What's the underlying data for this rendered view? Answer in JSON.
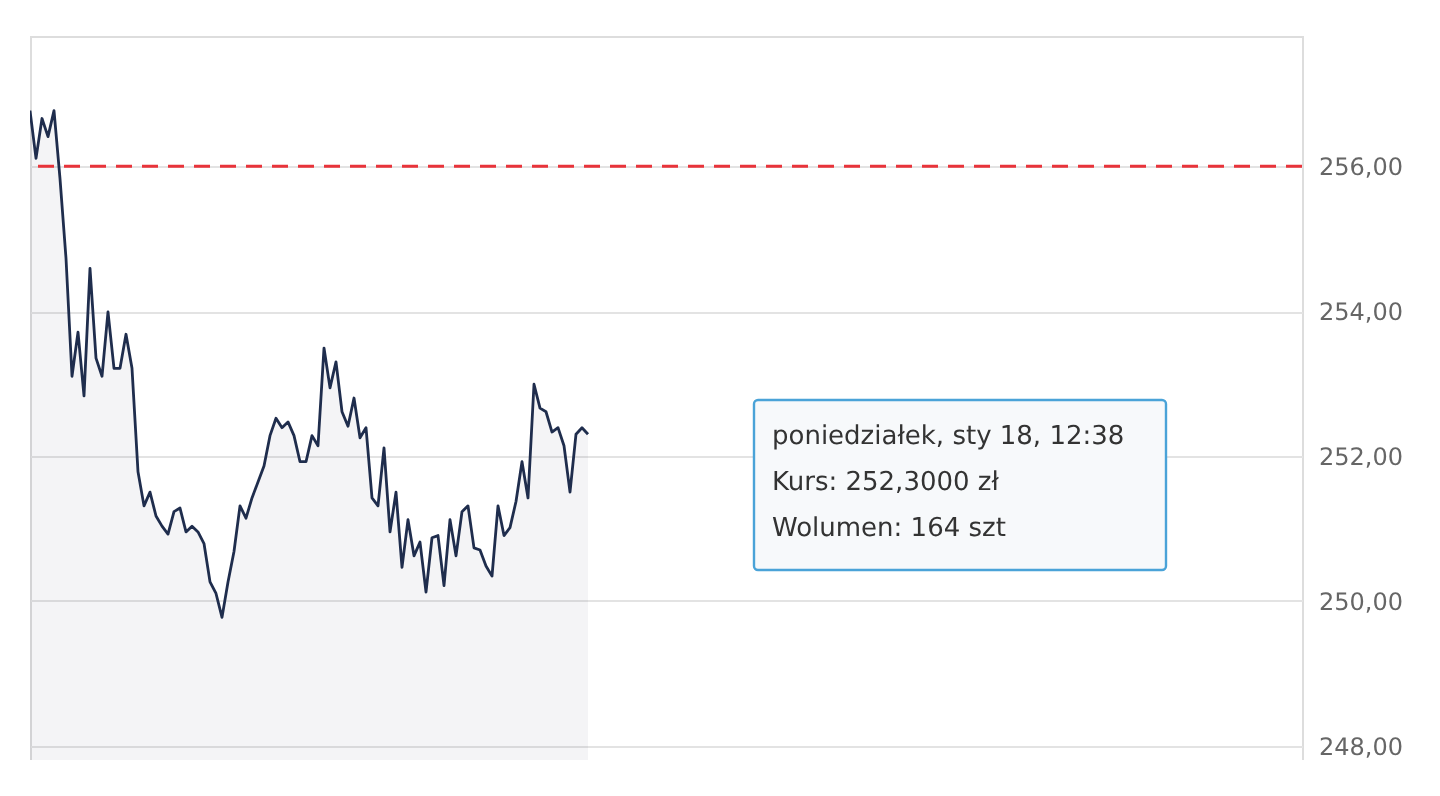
{
  "chart_data": {
    "type": "area",
    "categories": [
      null,
      null,
      null,
      null,
      null,
      null,
      null,
      null,
      null,
      null,
      null,
      null,
      null,
      null,
      null,
      null,
      null,
      null,
      null,
      null,
      null,
      null,
      null,
      null,
      null,
      null,
      null,
      null,
      null,
      null,
      null,
      null,
      null,
      null,
      null,
      null,
      null,
      null,
      null,
      null,
      null,
      null,
      null,
      null,
      null,
      null,
      null,
      null,
      null,
      null,
      null,
      null,
      null,
      null,
      null,
      null,
      null,
      null,
      null,
      null,
      null,
      null,
      null,
      null,
      null,
      null,
      null,
      null,
      null,
      null,
      null,
      null,
      null,
      null,
      null,
      null,
      null,
      null,
      null,
      null,
      null,
      null,
      null,
      null,
      null,
      null,
      null,
      null,
      null,
      null,
      null,
      null,
      null,
      null,
      null,
      null,
      null,
      null,
      null,
      null,
      null,
      null,
      null,
      null,
      null,
      null,
      null,
      null,
      null,
      null,
      null,
      null,
      null,
      null,
      null,
      null,
      null,
      null,
      null,
      null,
      null,
      null,
      null,
      null,
      null,
      null,
      null,
      null,
      null,
      null,
      null,
      null,
      null,
      null,
      null,
      null,
      null,
      null,
      null,
      null,
      null,
      null,
      null,
      null,
      null,
      null,
      null,
      null,
      null,
      null,
      null,
      null,
      null,
      null,
      null,
      null,
      null,
      null,
      null,
      null,
      null,
      null,
      null,
      null,
      null,
      null,
      null,
      null,
      null,
      null,
      null,
      null,
      null,
      null,
      null,
      null,
      null,
      null,
      null,
      null,
      null,
      null,
      null,
      null,
      null,
      null,
      null,
      null,
      null,
      null,
      null,
      null,
      null,
      null,
      null,
      null,
      null,
      null,
      null,
      null,
      null,
      null,
      null,
      null,
      null,
      null,
      null,
      null,
      null,
      null,
      null,
      null,
      null
    ],
    "series": [
      {
        "color": "#1f2d4d",
        "values": [
          256.77,
          256.11,
          256.66,
          256.41,
          256.77,
          255.83,
          254.73,
          253.1,
          253.71,
          252.83,
          254.59,
          253.35,
          253.1,
          253.99,
          253.21,
          253.21,
          253.68,
          253.21,
          251.78,
          251.31,
          251.5,
          251.17,
          251.03,
          250.92,
          251.23,
          251.28,
          250.95,
          251.03,
          250.95,
          250.79,
          250.26,
          250.1,
          249.77,
          250.26,
          250.68,
          251.31,
          251.14,
          251.42,
          251.64,
          251.86,
          252.28,
          252.52,
          252.39,
          252.47,
          252.28,
          251.92,
          251.92,
          252.28,
          252.14,
          253.49,
          252.94,
          253.3,
          252.61,
          252.41,
          252.8,
          252.25,
          252.39,
          251.42,
          251.31,
          252.11,
          250.95,
          251.5,
          250.46,
          251.12,
          250.62,
          250.81,
          250.12,
          250.87,
          250.9,
          250.21,
          251.12,
          250.62,
          251.23,
          251.31,
          250.73,
          250.7,
          250.48,
          250.34,
          251.31,
          250.9,
          251.01,
          251.37,
          251.92,
          251.42,
          252.99,
          252.66,
          252.61,
          252.33,
          252.39,
          252.14,
          251.5,
          252.3,
          252.39,
          252.3,
          null,
          null,
          null,
          null,
          null,
          null,
          null,
          null,
          null,
          null,
          null,
          null,
          null,
          null,
          null,
          null,
          null,
          null,
          null,
          null,
          null,
          null,
          null,
          null,
          null,
          null,
          null,
          null,
          null,
          null,
          null,
          null,
          null,
          null,
          null,
          null,
          null,
          null,
          null,
          null,
          null,
          null,
          null,
          null,
          null,
          null,
          null,
          null,
          null,
          null,
          null,
          null,
          null,
          null,
          null,
          null,
          null,
          null,
          null,
          null,
          null,
          null,
          null,
          null,
          null,
          null,
          null,
          null,
          null,
          null,
          null,
          null,
          null,
          null,
          null,
          null,
          null,
          null,
          null,
          null,
          null,
          null,
          null,
          null,
          null,
          null,
          null,
          null,
          null,
          null,
          null,
          null,
          null,
          null,
          null,
          null,
          null,
          null,
          null,
          null,
          null,
          null,
          null,
          null,
          null,
          null,
          null,
          null,
          null,
          null,
          null,
          null,
          null,
          null,
          null,
          null,
          null,
          null,
          null
        ]
      }
    ],
    "ylim": [
      247.8,
      257.8
    ],
    "yticks": [
      {
        "value": 248,
        "label": "248,00"
      },
      {
        "value": 250,
        "label": "250,00"
      },
      {
        "value": 252,
        "label": "252,00"
      },
      {
        "value": 254,
        "label": "254,00"
      },
      {
        "value": 256,
        "label": "256,00"
      }
    ],
    "grid": "y",
    "tick_labels": "y",
    "ref_lines": [
      {
        "axis": "y",
        "value": 256,
        "color": "#e8333a",
        "line_style": "dashed"
      }
    ],
    "annotations": [
      "poniedziałek, sty 18, 12:38",
      "Kurs:       252,3000 zł",
      "Wolumen:   164 szt"
    ]
  }
}
